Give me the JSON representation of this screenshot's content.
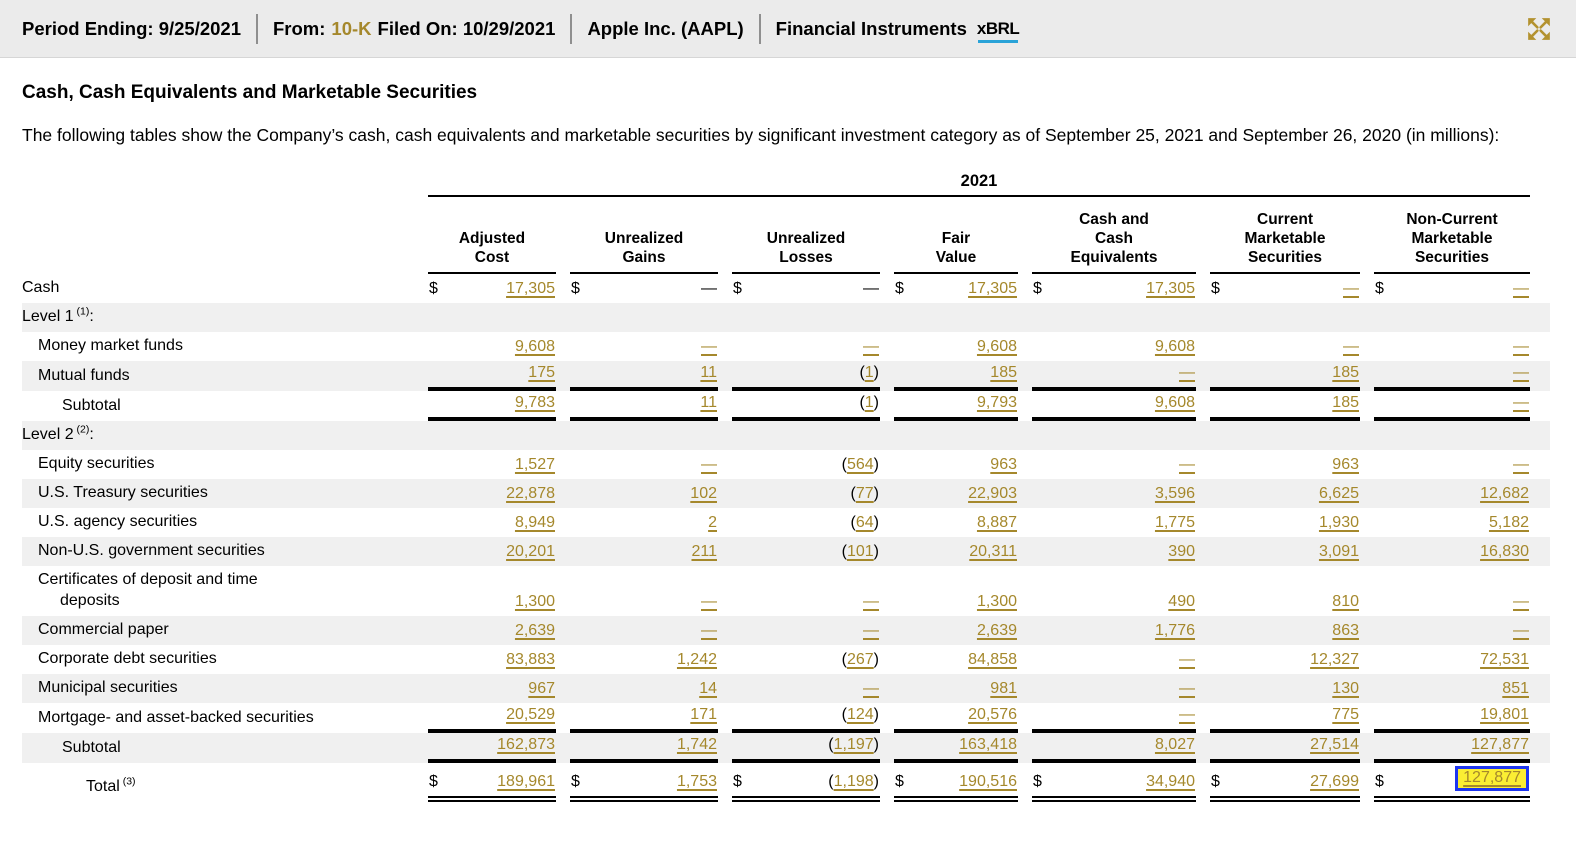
{
  "topbar": {
    "period": "Period Ending: 9/25/2021",
    "from_label": "From:",
    "form_type": "10-K",
    "filed": "Filed On: 10/29/2021",
    "company": "Apple Inc. (AAPL)",
    "section": "Financial Instruments",
    "xbrl": "xBRL",
    "expand_icon": "expand-arrows-icon"
  },
  "content": {
    "heading": "Cash, Cash Equivalents and Marketable Securities",
    "intro": "The following tables show the Company’s cash, cash equivalents and marketable securities by significant investment category as of September 25, 2021 and September 26, 2020 (in millions):"
  },
  "table": {
    "year": "2021",
    "columns": [
      [
        "Adjusted",
        "Cost"
      ],
      [
        "Unrealized",
        "Gains"
      ],
      [
        "Unrealized",
        "Losses"
      ],
      [
        "Fair",
        "Value"
      ],
      [
        "Cash and",
        "Cash",
        "Equivalents"
      ],
      [
        "Current",
        "Marketable",
        "Securities"
      ],
      [
        "Non-Current",
        "Marketable",
        "Securities"
      ]
    ],
    "rows": [
      {
        "label": "Cash",
        "indent": 0,
        "stripe": false,
        "dollar": true,
        "border": "none",
        "cells": [
          {
            "v": "17,305"
          },
          {
            "v": "—",
            "plain": true
          },
          {
            "v": "—",
            "plain": true
          },
          {
            "v": "17,305"
          },
          {
            "v": "17,305"
          },
          {
            "v": "—"
          },
          {
            "v": "—"
          }
        ]
      },
      {
        "label": "Level 1",
        "sup": "(1)",
        "suffix": ":",
        "indent": 0,
        "stripe": true,
        "border": "none",
        "cells": null
      },
      {
        "label": "Money market funds",
        "indent": 1,
        "stripe": false,
        "border": "none",
        "cells": [
          {
            "v": "9,608"
          },
          {
            "v": "—"
          },
          {
            "v": "—"
          },
          {
            "v": "9,608"
          },
          {
            "v": "9,608"
          },
          {
            "v": "—"
          },
          {
            "v": "—"
          }
        ]
      },
      {
        "label": "Mutual funds",
        "indent": 1,
        "stripe": true,
        "border": "thick",
        "cells": [
          {
            "v": "175"
          },
          {
            "v": "11"
          },
          {
            "v": "1",
            "neg": true
          },
          {
            "v": "185"
          },
          {
            "v": "—"
          },
          {
            "v": "185"
          },
          {
            "v": "—"
          }
        ]
      },
      {
        "label": "Subtotal",
        "indent": 2,
        "stripe": false,
        "border": "thick",
        "cells": [
          {
            "v": "9,783"
          },
          {
            "v": "11"
          },
          {
            "v": "1",
            "neg": true
          },
          {
            "v": "9,793"
          },
          {
            "v": "9,608"
          },
          {
            "v": "185"
          },
          {
            "v": "—"
          }
        ]
      },
      {
        "label": "Level 2",
        "sup": "(2)",
        "suffix": ":",
        "indent": 0,
        "stripe": true,
        "border": "none",
        "cells": null
      },
      {
        "label": "Equity securities",
        "indent": 1,
        "stripe": false,
        "border": "none",
        "cells": [
          {
            "v": "1,527"
          },
          {
            "v": "—"
          },
          {
            "v": "564",
            "neg": true
          },
          {
            "v": "963"
          },
          {
            "v": "—"
          },
          {
            "v": "963"
          },
          {
            "v": "—"
          }
        ]
      },
      {
        "label": "U.S. Treasury securities",
        "indent": 1,
        "stripe": true,
        "border": "none",
        "cells": [
          {
            "v": "22,878"
          },
          {
            "v": "102"
          },
          {
            "v": "77",
            "neg": true
          },
          {
            "v": "22,903"
          },
          {
            "v": "3,596"
          },
          {
            "v": "6,625"
          },
          {
            "v": "12,682"
          }
        ]
      },
      {
        "label": "U.S. agency securities",
        "indent": 1,
        "stripe": false,
        "border": "none",
        "cells": [
          {
            "v": "8,949"
          },
          {
            "v": "2"
          },
          {
            "v": "64",
            "neg": true
          },
          {
            "v": "8,887"
          },
          {
            "v": "1,775"
          },
          {
            "v": "1,930"
          },
          {
            "v": "5,182"
          }
        ]
      },
      {
        "label": "Non-U.S. government securities",
        "indent": 1,
        "stripe": true,
        "border": "none",
        "cells": [
          {
            "v": "20,201"
          },
          {
            "v": "211"
          },
          {
            "v": "101",
            "neg": true
          },
          {
            "v": "20,311"
          },
          {
            "v": "390"
          },
          {
            "v": "3,091"
          },
          {
            "v": "16,830"
          }
        ]
      },
      {
        "label": "Certificates of deposit and time",
        "label2": "deposits",
        "indent": 1,
        "stripe": false,
        "border": "none",
        "cells": [
          {
            "v": "1,300"
          },
          {
            "v": "—"
          },
          {
            "v": "—"
          },
          {
            "v": "1,300"
          },
          {
            "v": "490"
          },
          {
            "v": "810"
          },
          {
            "v": "—"
          }
        ]
      },
      {
        "label": "Commercial paper",
        "indent": 1,
        "stripe": true,
        "border": "none",
        "cells": [
          {
            "v": "2,639"
          },
          {
            "v": "—"
          },
          {
            "v": "—"
          },
          {
            "v": "2,639"
          },
          {
            "v": "1,776"
          },
          {
            "v": "863"
          },
          {
            "v": "—"
          }
        ]
      },
      {
        "label": "Corporate debt securities",
        "indent": 1,
        "stripe": false,
        "border": "none",
        "cells": [
          {
            "v": "83,883"
          },
          {
            "v": "1,242"
          },
          {
            "v": "267",
            "neg": true
          },
          {
            "v": "84,858"
          },
          {
            "v": "—"
          },
          {
            "v": "12,327"
          },
          {
            "v": "72,531"
          }
        ]
      },
      {
        "label": "Municipal securities",
        "indent": 1,
        "stripe": true,
        "border": "none",
        "cells": [
          {
            "v": "967"
          },
          {
            "v": "14"
          },
          {
            "v": "—"
          },
          {
            "v": "981"
          },
          {
            "v": "—"
          },
          {
            "v": "130"
          },
          {
            "v": "851"
          }
        ]
      },
      {
        "label": "Mortgage- and asset-backed securities",
        "indent": 1,
        "stripe": false,
        "border": "thick",
        "cells": [
          {
            "v": "20,529"
          },
          {
            "v": "171"
          },
          {
            "v": "124",
            "neg": true
          },
          {
            "v": "20,576"
          },
          {
            "v": "—"
          },
          {
            "v": "775"
          },
          {
            "v": "19,801"
          }
        ]
      },
      {
        "label": "Subtotal",
        "indent": 2,
        "stripe": true,
        "border": "thick",
        "cells": [
          {
            "v": "162,873"
          },
          {
            "v": "1,742"
          },
          {
            "v": "1,197",
            "neg": true
          },
          {
            "v": "163,418"
          },
          {
            "v": "8,027"
          },
          {
            "v": "27,514"
          },
          {
            "v": "127,877"
          }
        ]
      },
      {
        "label": "Total",
        "sup": "(3)",
        "indent": 3,
        "stripe": false,
        "dollar": true,
        "border": "double",
        "cells": [
          {
            "v": "189,961"
          },
          {
            "v": "1,753"
          },
          {
            "v": "1,198",
            "neg": true
          },
          {
            "v": "190,516"
          },
          {
            "v": "34,940"
          },
          {
            "v": "27,699"
          },
          {
            "v": "127,877",
            "highlight": true
          }
        ]
      }
    ]
  },
  "colors": {
    "link_gold": "#a5882c",
    "icon_gold": "#b3922f",
    "row_stripe": "#f0f0f0",
    "topbar_bg": "#ebebeb",
    "highlight_fill": "#fbee33",
    "highlight_border": "#1d35f0"
  }
}
